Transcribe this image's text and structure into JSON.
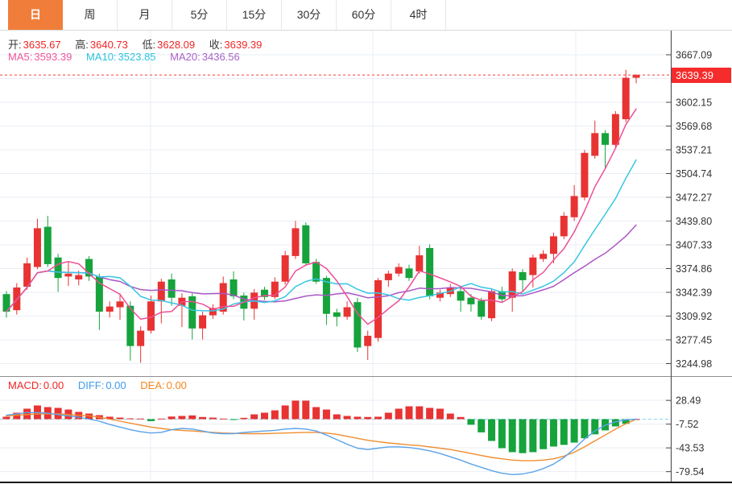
{
  "toolbar": {
    "tabs": [
      {
        "label": "日",
        "active": true
      },
      {
        "label": "周",
        "active": false
      },
      {
        "label": "月",
        "active": false
      },
      {
        "label": "5分",
        "active": false
      },
      {
        "label": "15分",
        "active": false
      },
      {
        "label": "30分",
        "active": false
      },
      {
        "label": "60分",
        "active": false
      },
      {
        "label": "4时",
        "active": false
      }
    ]
  },
  "ohlc": {
    "open_label": "开:",
    "open": "3635.67",
    "high_label": "高:",
    "high": "3640.73",
    "low_label": "低:",
    "low": "3628.09",
    "close_label": "收:",
    "close": "3639.39"
  },
  "ma_readout": {
    "ma5_label": "MA5:",
    "ma5": "3593.39",
    "ma10_label": "MA10:",
    "ma10": "3523.85",
    "ma20_label": "MA20:",
    "ma20": "3436.56"
  },
  "macd_readout": {
    "macd_label": "MACD:",
    "macd": "0.00",
    "diff_label": "DIFF:",
    "diff": "0.00",
    "dea_label": "DEA:",
    "dea": "0.00"
  },
  "axis": {
    "current_price": "3639.39",
    "price_tick_labels": [
      "3667.09",
      "3602.15",
      "3569.68",
      "3537.21",
      "3504.74",
      "3472.27",
      "3439.80",
      "3407.33",
      "3374.86",
      "3342.39",
      "3309.92",
      "3277.45",
      "3244.98"
    ],
    "macd_tick_labels": [
      "28.49",
      "-7.52",
      "-43.53",
      "-79.54"
    ]
  },
  "colors": {
    "up_candle": "#e83333",
    "down_candle": "#16a33c",
    "ma5_line": "#ee4f96",
    "ma10_line": "#36c6e3",
    "ma20_line": "#ab57c5",
    "diff_line": "#5aa2e8",
    "dea_line": "#f08d2f",
    "zero_dash": "#86d7ef",
    "price_dash": "#f63b3b",
    "grid": "#e9eef5",
    "axis_line": "#555555",
    "tick_text": "#333333",
    "badge_bg": "#f62b2b",
    "active_tab": "#f07e3a"
  },
  "chart_data": {
    "type": "candlestick",
    "panels": [
      "price",
      "macd"
    ],
    "interval_selected": "日",
    "candles_ohlc": [
      [
        3340,
        3344,
        3308,
        3316
      ],
      [
        3318,
        3355,
        3312,
        3349
      ],
      [
        3350,
        3390,
        3346,
        3382
      ],
      [
        3377,
        3443,
        3374,
        3430
      ],
      [
        3432,
        3447,
        3377,
        3381
      ],
      [
        3390,
        3395,
        3343,
        3362
      ],
      [
        3364,
        3384,
        3351,
        3368
      ],
      [
        3360,
        3372,
        3352,
        3366
      ],
      [
        3388,
        3392,
        3358,
        3364
      ],
      [
        3364,
        3368,
        3291,
        3316
      ],
      [
        3316,
        3330,
        3308,
        3323
      ],
      [
        3322,
        3341,
        3305,
        3330
      ],
      [
        3324,
        3330,
        3249,
        3269
      ],
      [
        3269,
        3296,
        3246,
        3290
      ],
      [
        3290,
        3338,
        3286,
        3330
      ],
      [
        3330,
        3361,
        3300,
        3357
      ],
      [
        3360,
        3368,
        3324,
        3335
      ],
      [
        3324,
        3341,
        3295,
        3335
      ],
      [
        3337,
        3341,
        3278,
        3293
      ],
      [
        3293,
        3316,
        3278,
        3311
      ],
      [
        3311,
        3326,
        3306,
        3321
      ],
      [
        3316,
        3364,
        3312,
        3355
      ],
      [
        3360,
        3371,
        3333,
        3337
      ],
      [
        3338,
        3342,
        3304,
        3320
      ],
      [
        3320,
        3347,
        3305,
        3342
      ],
      [
        3346,
        3350,
        3332,
        3336
      ],
      [
        3336,
        3363,
        3333,
        3357
      ],
      [
        3357,
        3399,
        3353,
        3393
      ],
      [
        3392,
        3440,
        3388,
        3430
      ],
      [
        3434,
        3438,
        3380,
        3382
      ],
      [
        3384,
        3388,
        3354,
        3357
      ],
      [
        3362,
        3365,
        3298,
        3313
      ],
      [
        3315,
        3320,
        3296,
        3309
      ],
      [
        3309,
        3330,
        3305,
        3322
      ],
      [
        3329,
        3335,
        3261,
        3267
      ],
      [
        3269,
        3290,
        3250,
        3283
      ],
      [
        3280,
        3362,
        3275,
        3359
      ],
      [
        3359,
        3372,
        3350,
        3368
      ],
      [
        3368,
        3382,
        3364,
        3377
      ],
      [
        3375,
        3380,
        3358,
        3362
      ],
      [
        3371,
        3406,
        3368,
        3393
      ],
      [
        3403,
        3408,
        3333,
        3337
      ],
      [
        3335,
        3346,
        3330,
        3342
      ],
      [
        3340,
        3354,
        3336,
        3349
      ],
      [
        3344,
        3348,
        3316,
        3331
      ],
      [
        3335,
        3340,
        3316,
        3326
      ],
      [
        3331,
        3335,
        3305,
        3309
      ],
      [
        3307,
        3348,
        3303,
        3344
      ],
      [
        3344,
        3350,
        3328,
        3333
      ],
      [
        3335,
        3375,
        3316,
        3371
      ],
      [
        3370,
        3374,
        3343,
        3359
      ],
      [
        3366,
        3394,
        3349,
        3390
      ],
      [
        3388,
        3400,
        3384,
        3395
      ],
      [
        3395,
        3424,
        3382,
        3419
      ],
      [
        3419,
        3452,
        3415,
        3447
      ],
      [
        3445,
        3489,
        3440,
        3474
      ],
      [
        3472,
        3537,
        3468,
        3533
      ],
      [
        3529,
        3577,
        3525,
        3560
      ],
      [
        3560,
        3564,
        3511,
        3544
      ],
      [
        3544,
        3590,
        3540,
        3586
      ],
      [
        3579,
        3646.5,
        3575,
        3635.67
      ],
      [
        3635.67,
        3640.73,
        3628.09,
        3639.39
      ]
    ],
    "ma_periods": [
      5,
      10,
      20
    ],
    "macd": {
      "histogram": [
        3.7,
        9.8,
        15.9,
        20.8,
        18.3,
        17.1,
        14.6,
        11.0,
        8.5,
        6.1,
        3.7,
        2.4,
        1.2,
        0.9,
        -3.0,
        0.9,
        4.0,
        4.9,
        5.7,
        3.3,
        2.4,
        0.9,
        -1.2,
        2.0,
        7.3,
        9.8,
        13.4,
        20.8,
        28.1,
        28.1,
        18.3,
        14.6,
        7.3,
        4.9,
        3.7,
        3.3,
        3.7,
        9.8,
        15.9,
        19.5,
        19.5,
        17.1,
        15.9,
        8.5,
        3.3,
        -8.5,
        -20.0,
        -33.0,
        -44.0,
        -50.0,
        -51.5,
        -50.0,
        -45.5,
        -41.5,
        -39.0,
        -35.5,
        -29.0,
        -23.0,
        -17.0,
        -11.0,
        -7.0,
        0.0
      ],
      "diff": [
        6,
        8,
        10,
        10,
        9,
        7,
        5,
        3,
        0,
        -3,
        -8,
        -12,
        -16,
        -19,
        -21,
        -20,
        -16,
        -14,
        -15,
        -18,
        -21,
        -22,
        -22,
        -20,
        -19,
        -18,
        -17,
        -15,
        -14,
        -15,
        -18,
        -24,
        -31,
        -38,
        -44,
        -46,
        -44,
        -42,
        -42,
        -43,
        -45,
        -48,
        -52,
        -57,
        -62,
        -68,
        -73,
        -78,
        -82,
        -84,
        -83,
        -80,
        -75,
        -68,
        -58,
        -45,
        -30,
        -18,
        -9,
        -4,
        -1,
        0
      ],
      "dea": [
        5,
        6,
        7,
        8,
        8,
        8,
        7,
        6,
        5,
        3,
        0,
        -3,
        -6,
        -9,
        -12,
        -14,
        -16,
        -17,
        -18,
        -19,
        -20,
        -21,
        -21.5,
        -22,
        -22,
        -22,
        -21.5,
        -21,
        -20.5,
        -20,
        -20,
        -21,
        -23,
        -26,
        -29,
        -32,
        -34,
        -36,
        -37.5,
        -39,
        -40,
        -42,
        -44,
        -46,
        -49,
        -52,
        -55,
        -58,
        -60,
        -62,
        -63,
        -63,
        -62,
        -60,
        -56,
        -50,
        -42,
        -33,
        -24,
        -15,
        -7,
        0
      ]
    },
    "price_axis": {
      "max_tick": 3667.09,
      "tick_step": 32.47,
      "tick_count": 14,
      "min_tick": 3244.98,
      "hidden_tick_label": "3634.62"
    },
    "macd_axis": {
      "max_tick": 28.49,
      "tick_step": 36.01,
      "tick_count": 4,
      "min_tick": -79.54
    },
    "current_price": 3639.39,
    "ohlc_latest": {
      "open": 3635.67,
      "high": 3640.73,
      "low": 3628.09,
      "close": 3639.39
    },
    "ma_latest": {
      "ma5": 3593.39,
      "ma10": 3523.85,
      "ma20": 3436.56
    },
    "macd_latest": {
      "macd": 0.0,
      "diff": 0.0,
      "dea": 0.0
    }
  }
}
